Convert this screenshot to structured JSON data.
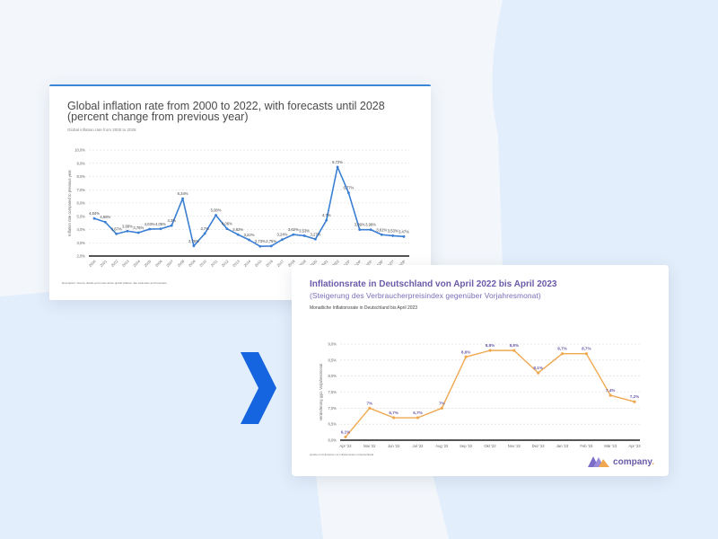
{
  "background": {
    "base": "#f3f7fb",
    "accent": "#e3eefc"
  },
  "arrow": {
    "icon": "chevron-right-icon",
    "color": "#1565e0"
  },
  "global_card": {
    "title": "Global inflation rate from 2000 to 2022, with forecasts until 2028 (percent change from previous year)",
    "subtitle": "Global inflation rate from 2000 to 2028",
    "footnote": "Description: Source details and notes about global inflation rate estimates and forecasts.",
    "accent": "#3b86d6"
  },
  "de_card": {
    "title": "Inflationsrate in Deutschland von April 2022 bis April 2023",
    "subtitle": "(Steigerung des Verbraucherpreisindex gegenüber Vorjahresmonat)",
    "chart_caption": "Monatliche Inflationsrate in Deutschland bis April 2023",
    "footnote": "Quelle und Hinweise zur Inflationsrate in Deutschland.",
    "logo_text": "company",
    "logo_dot": ".",
    "accent": "#f0a850",
    "label_color": "#6b5ba8"
  },
  "chart_data": [
    {
      "type": "line",
      "title": "Global inflation rate from 2000 to 2022, with forecasts until 2028 (percent change from previous year)",
      "subtitle": "Global inflation rate from 2000 to 2028",
      "xlabel": "",
      "ylabel": "Inflation rate compared to previous year",
      "ylim": [
        2.0,
        10.0
      ],
      "yticks": [
        "2,0%",
        "3,0%",
        "4,0%",
        "5,0%",
        "6,0%",
        "7,0%",
        "8,0%",
        "9,0%",
        "10,0%"
      ],
      "grid": true,
      "color": "#3b7fd4",
      "categories": [
        "2000",
        "2001",
        "2002",
        "2003",
        "2004",
        "2005",
        "2006",
        "2007",
        "2008",
        "2009",
        "2010",
        "2011",
        "2012",
        "2013",
        "2014",
        "2015",
        "2016",
        "2017",
        "2018",
        "2019",
        "2020",
        "2021",
        "2022",
        "2023*",
        "2024*",
        "2025*",
        "2026*",
        "2027*",
        "2028*"
      ],
      "values": [
        4.84,
        4.56,
        3.67,
        3.88,
        3.76,
        4.03,
        4.05,
        4.3,
        6.34,
        2.76,
        3.7,
        5.08,
        4.06,
        3.62,
        3.22,
        2.73,
        2.75,
        3.24,
        3.62,
        3.53,
        3.27,
        4.7,
        8.72,
        6.77,
        3.99,
        3.99,
        3.61,
        3.53,
        3.47
      ],
      "labels": [
        "4,84%",
        "4,56%",
        "3,67%",
        "3,88%",
        "3,76%",
        "4,03%",
        "4,05%",
        "4,3%",
        "6,34%",
        "2,76%",
        "3,7%",
        "5,08%",
        "4,06%",
        "3,62%",
        "3,22%",
        "2,73%",
        "2,75%",
        "3,24%",
        "3,62%",
        "3,53%",
        "3,27%",
        "4,7%",
        "8,72%",
        "6,77%",
        "3,99%",
        "3,99%",
        "3,61%",
        "3,53%",
        "3,47%"
      ]
    },
    {
      "type": "line",
      "title": "Inflationsrate in Deutschland von April 2022 bis April 2023",
      "subtitle": "Monatliche Inflationsrate in Deutschland bis April 2023",
      "xlabel": "",
      "ylabel": "Veränderung ggü. Vorjahresmonat",
      "ylim": [
        6.0,
        9.0
      ],
      "yticks": [
        "6,0%",
        "6,5%",
        "7,0%",
        "7,5%",
        "8,0%",
        "8,5%",
        "9,0%"
      ],
      "grid": true,
      "color": "#f0a850",
      "categories": [
        "Apr '22",
        "Mai '22",
        "Jun '22",
        "Jul '22",
        "Aug '22",
        "Sep '22",
        "Okt '22",
        "Nov '22",
        "Dez '22",
        "Jan '23",
        "Feb '23",
        "Mär '23",
        "Apr '23"
      ],
      "values": [
        6.1,
        7.0,
        6.7,
        6.7,
        7.0,
        8.6,
        8.8,
        8.8,
        8.1,
        8.7,
        8.7,
        7.4,
        7.2
      ],
      "labels": [
        "6,1%",
        "7%",
        "6,7%",
        "6,7%",
        "7%",
        "8,6%",
        "8,8%",
        "8,8%",
        "8,1%",
        "8,7%",
        "8,7%",
        "7,4%",
        "7,2%"
      ]
    }
  ]
}
